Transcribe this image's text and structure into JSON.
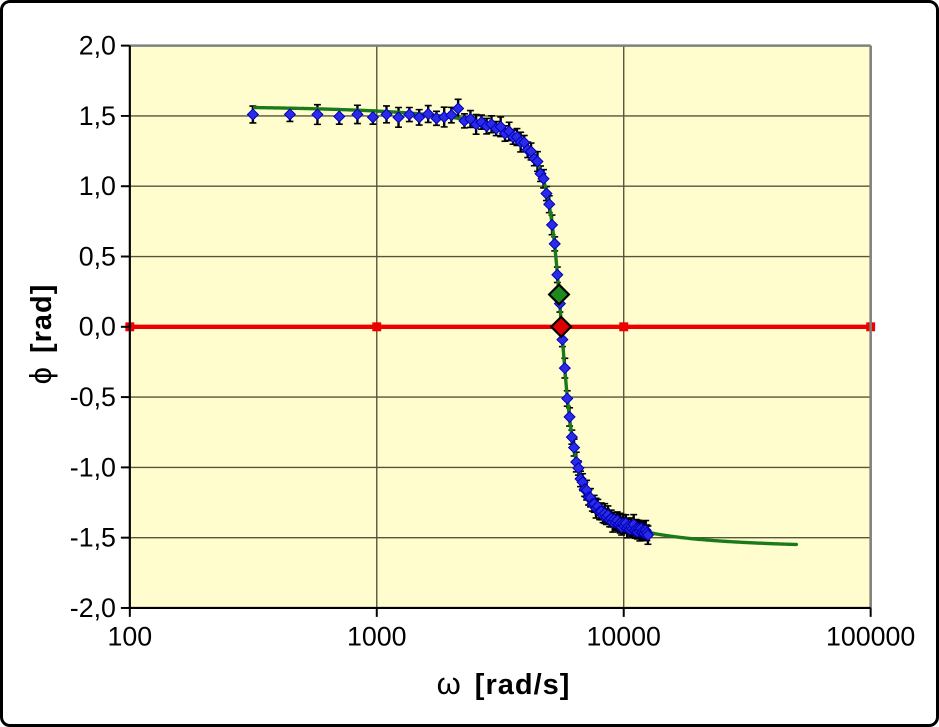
{
  "frame": {
    "background": "#ffffff",
    "border_color": "#000000"
  },
  "chart_data": {
    "type": "scatter",
    "title": "",
    "xlabel_symbol": "ω",
    "xlabel_unit": "[rad/s]",
    "ylabel_symbol": "ϕ",
    "ylabel_unit": "[rad]",
    "x_scale": "log",
    "xlim": [
      100,
      100000
    ],
    "ylim": [
      -2.0,
      2.0
    ],
    "grid": "on",
    "legend": "none",
    "plot_bg": "#FFFDCE",
    "grid_color": "#55553C",
    "axis_color": "#000000",
    "plot_border_color": "#808080",
    "x_ticks": [
      {
        "value": 100,
        "label": "100"
      },
      {
        "value": 1000,
        "label": "1000"
      },
      {
        "value": 10000,
        "label": "10000"
      },
      {
        "value": 100000,
        "label": "100000"
      }
    ],
    "y_ticks": [
      {
        "value": 2.0,
        "label": "2,0"
      },
      {
        "value": 1.5,
        "label": "1,5"
      },
      {
        "value": 1.0,
        "label": "1,0"
      },
      {
        "value": 0.5,
        "label": "0,5"
      },
      {
        "value": 0.0,
        "label": "0,0"
      },
      {
        "value": -0.5,
        "label": "-0,5"
      },
      {
        "value": -1.0,
        "label": "-1,0"
      },
      {
        "value": -1.5,
        "label": "-1,5"
      },
      {
        "value": -2.0,
        "label": "-2,0"
      }
    ],
    "series": [
      {
        "name": "measured-phase-points",
        "type": "scatter",
        "marker": "diamond",
        "marker_color": "#2A2AE8",
        "marker_edge": "#0000B4",
        "error_bar_color": "#000000",
        "omega": [
          315,
          445,
          575,
          705,
          835,
          965,
          1095,
          1225,
          1355,
          1485,
          1615,
          1745,
          1875,
          2005,
          2135,
          2265,
          2395,
          2525,
          2655,
          2785,
          2915,
          3045,
          3175,
          3305,
          3435,
          3565,
          3695,
          3825,
          3955,
          4085,
          4215,
          4345,
          4475,
          4605,
          4735,
          4865,
          4995,
          5125,
          5255,
          5385,
          5515,
          5645,
          5775,
          5905,
          6035,
          6165,
          6295,
          6425,
          6555,
          6685,
          6815,
          6945,
          7075,
          7205,
          7335,
          7465,
          7595,
          7725,
          7855,
          7985,
          8115,
          8245,
          8375,
          8505,
          8635,
          8765,
          8895,
          9025,
          9155,
          9285,
          9415,
          9545,
          9675,
          9805,
          9935,
          10065,
          10195,
          10325,
          10455,
          10585,
          10715,
          10845,
          10975,
          11105,
          11235,
          11365,
          11495,
          11625,
          11755,
          11885,
          12015,
          12145,
          12275,
          12405,
          12535
        ],
        "phi": [
          1.51,
          1.511,
          1.51,
          1.496,
          1.511,
          1.491,
          1.511,
          1.49,
          1.51,
          1.49,
          1.514,
          1.483,
          1.492,
          1.506,
          1.553,
          1.465,
          1.478,
          1.44,
          1.456,
          1.427,
          1.441,
          1.41,
          1.423,
          1.375,
          1.39,
          1.349,
          1.35,
          1.314,
          1.311,
          1.259,
          1.247,
          1.196,
          1.176,
          1.089,
          1.053,
          0.948,
          0.872,
          0.725,
          0.59,
          0.37,
          0.165,
          -0.091,
          -0.294,
          -0.51,
          -0.641,
          -0.785,
          -0.859,
          -0.962,
          -1.005,
          -1.082,
          -1.105,
          -1.156,
          -1.162,
          -1.213,
          -1.216,
          -1.261,
          -1.259,
          -1.29,
          -1.278,
          -1.316,
          -1.313,
          -1.343,
          -1.328,
          -1.351,
          -1.339,
          -1.372,
          -1.364,
          -1.39,
          -1.371,
          -1.392,
          -1.377,
          -1.407,
          -1.397,
          -1.426,
          -1.4,
          -1.419,
          -1.397,
          -1.431,
          -1.419,
          -1.442,
          -1.42,
          -1.438,
          -1.406,
          -1.449,
          -1.436,
          -1.459,
          -1.436,
          -1.453,
          -1.435,
          -1.462,
          -1.449,
          -1.471,
          -1.448,
          -1.465,
          -1.482
        ],
        "err": [
          0.06,
          0.05,
          0.07,
          0.055,
          0.065,
          0.05,
          0.06,
          0.07,
          0.05,
          0.055,
          0.06,
          0.05,
          0.07,
          0.055,
          0.065,
          0.05,
          0.06,
          0.07,
          0.05,
          0.055,
          0.06,
          0.05,
          0.07,
          0.055,
          0.065,
          0.05,
          0.06,
          0.07,
          0.05,
          0.055,
          0.06,
          0.05,
          0.07,
          0.055,
          0.065,
          0.05,
          0.06,
          0.07,
          0.05,
          0.055,
          0.06,
          0.05,
          0.07,
          0.055,
          0.065,
          0.05,
          0.06,
          0.07,
          0.05,
          0.055,
          0.06,
          0.05,
          0.07,
          0.055,
          0.065,
          0.05,
          0.06,
          0.07,
          0.05,
          0.055,
          0.06,
          0.05,
          0.07,
          0.055,
          0.065,
          0.05,
          0.06,
          0.07,
          0.05,
          0.055,
          0.06,
          0.05,
          0.07,
          0.055,
          0.065,
          0.05,
          0.06,
          0.07,
          0.05,
          0.055,
          0.06,
          0.05,
          0.07,
          0.055,
          0.065,
          0.05,
          0.06,
          0.07,
          0.05,
          0.055,
          0.06,
          0.05,
          0.07,
          0.055,
          0.065
        ]
      },
      {
        "name": "fit-curve",
        "type": "line",
        "color": "#1A7A1A",
        "width": 3.4,
        "model": "phi = atan((omega0^2 - omega^2) / (gamma * omega))",
        "omega0": 5600,
        "gamma": 1100,
        "omega_range": [
          320,
          50000
        ]
      },
      {
        "name": "zero-line",
        "type": "line",
        "color": "#EE0000",
        "width": 4.5,
        "y": 0.0,
        "omega_range": [
          100,
          100000
        ],
        "marker_omegas": [
          100,
          1000,
          10000,
          100000
        ],
        "marker_size": 9
      },
      {
        "name": "resonance-phase-marker",
        "type": "point",
        "marker": "diamond",
        "fill": "#1E8A1E",
        "stroke": "#000000",
        "size": 10,
        "omega": 5470,
        "phi": 0.23
      },
      {
        "name": "zero-crossing-marker",
        "type": "point",
        "marker": "diamond",
        "fill": "#DD0000",
        "stroke": "#000000",
        "size": 10,
        "omega": 5580,
        "phi": 0.0
      }
    ]
  }
}
